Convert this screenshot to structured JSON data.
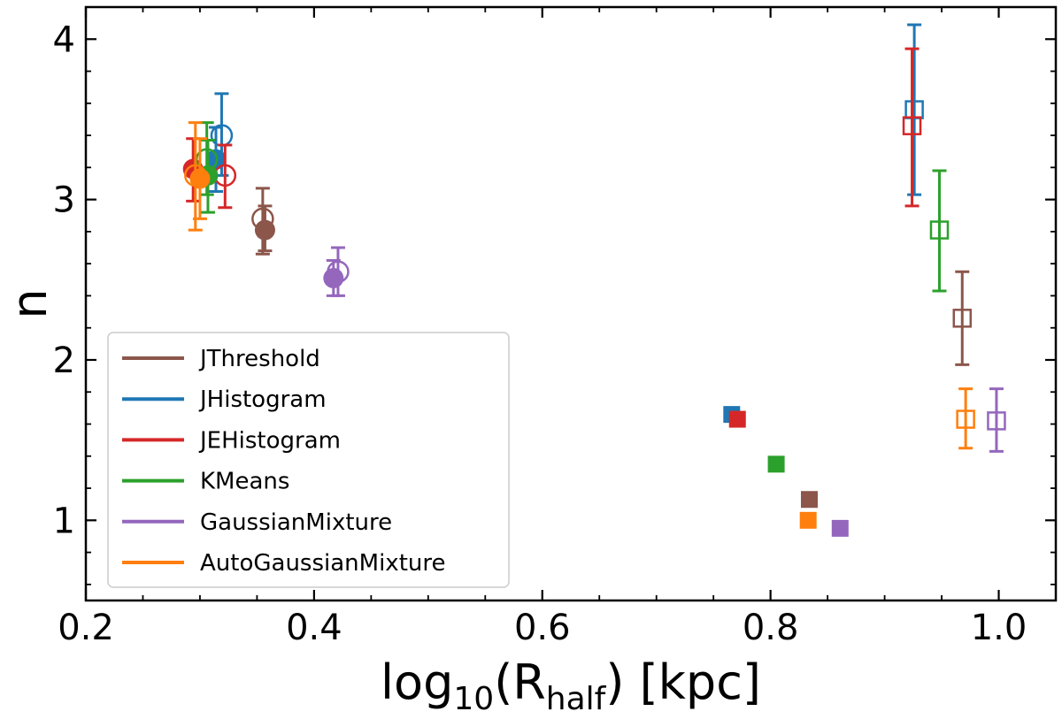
{
  "chart_data": {
    "type": "scatter",
    "title": "",
    "xlabel": {
      "base": "log",
      "base_sub": "10",
      "open": "(R",
      "var_sub": "half",
      "close": ") [kpc]"
    },
    "ylabel": "n",
    "xlim": [
      0.2,
      1.05
    ],
    "ylim": [
      0.5,
      4.2
    ],
    "x_ticks": [
      0.2,
      0.4,
      0.6,
      0.8,
      1.0
    ],
    "x_tick_labels": [
      "0.2",
      "0.4",
      "0.6",
      "0.8",
      "1.0"
    ],
    "y_ticks": [
      1,
      2,
      3,
      4
    ],
    "y_tick_labels": [
      "1",
      "2",
      "3",
      "4"
    ],
    "grid": false,
    "legend_position": "lower-left",
    "marker_key": {
      "filled-circle": "series point, filled circle",
      "open-circle": "series point, open circle",
      "filled-square": "series point, filled square",
      "open-square": "series point, open square"
    },
    "series": [
      {
        "name": "JThreshold",
        "color": "#8c564b",
        "points": [
          {
            "marker": "filled-circle",
            "x": 0.357,
            "y": 2.81,
            "yerr_low": 2.68,
            "yerr_high": 2.96
          },
          {
            "marker": "open-circle",
            "x": 0.355,
            "y": 2.88,
            "yerr_low": 2.66,
            "yerr_high": 3.07
          },
          {
            "marker": "filled-square",
            "x": 0.834,
            "y": 1.13
          },
          {
            "marker": "open-square",
            "x": 0.968,
            "y": 2.26,
            "yerr_low": 1.97,
            "yerr_high": 2.55
          }
        ]
      },
      {
        "name": "JHistogram",
        "color": "#1f77b4",
        "points": [
          {
            "marker": "filled-circle",
            "x": 0.314,
            "y": 3.25,
            "yerr_low": 3.05,
            "yerr_high": 3.45
          },
          {
            "marker": "open-circle",
            "x": 0.319,
            "y": 3.4,
            "yerr_low": 3.15,
            "yerr_high": 3.66
          },
          {
            "marker": "filled-square",
            "x": 0.766,
            "y": 1.66
          },
          {
            "marker": "open-square",
            "x": 0.926,
            "y": 3.56,
            "yerr_low": 3.03,
            "yerr_high": 4.09
          }
        ]
      },
      {
        "name": "JEHistogram",
        "color": "#d62728",
        "points": [
          {
            "marker": "filled-circle",
            "x": 0.294,
            "y": 3.19,
            "yerr_low": 2.99,
            "yerr_high": 3.38
          },
          {
            "marker": "open-circle",
            "x": 0.322,
            "y": 3.15,
            "yerr_low": 2.95,
            "yerr_high": 3.34
          },
          {
            "marker": "filled-square",
            "x": 0.771,
            "y": 1.63
          },
          {
            "marker": "open-square",
            "x": 0.924,
            "y": 3.46,
            "yerr_low": 2.96,
            "yerr_high": 3.94
          }
        ]
      },
      {
        "name": "KMeans",
        "color": "#2ca02c",
        "points": [
          {
            "marker": "filled-circle",
            "x": 0.307,
            "y": 3.15,
            "yerr_low": 2.92,
            "yerr_high": 3.37
          },
          {
            "marker": "open-circle",
            "x": 0.306,
            "y": 3.25,
            "yerr_low": 3.03,
            "yerr_high": 3.48
          },
          {
            "marker": "filled-square",
            "x": 0.805,
            "y": 1.35
          },
          {
            "marker": "open-square",
            "x": 0.948,
            "y": 2.81,
            "yerr_low": 2.43,
            "yerr_high": 3.18
          }
        ]
      },
      {
        "name": "GaussianMixture",
        "color": "#9467bd",
        "points": [
          {
            "marker": "filled-circle",
            "x": 0.417,
            "y": 2.51,
            "yerr_low": 2.4,
            "yerr_high": 2.62
          },
          {
            "marker": "open-circle",
            "x": 0.421,
            "y": 2.55,
            "yerr_low": 2.4,
            "yerr_high": 2.7
          },
          {
            "marker": "filled-square",
            "x": 0.861,
            "y": 0.95
          },
          {
            "marker": "open-square",
            "x": 0.998,
            "y": 1.62,
            "yerr_low": 1.43,
            "yerr_high": 1.82
          }
        ]
      },
      {
        "name": "AutoGaussianMixture",
        "color": "#ff7f0e",
        "points": [
          {
            "marker": "filled-circle",
            "x": 0.3,
            "y": 3.13,
            "yerr_low": 2.88,
            "yerr_high": 3.38
          },
          {
            "marker": "open-circle",
            "x": 0.296,
            "y": 3.15,
            "yerr_low": 2.81,
            "yerr_high": 3.48
          },
          {
            "marker": "filled-square",
            "x": 0.833,
            "y": 1.0
          },
          {
            "marker": "open-square",
            "x": 0.971,
            "y": 1.63,
            "yerr_low": 1.45,
            "yerr_high": 1.82
          }
        ]
      }
    ]
  }
}
